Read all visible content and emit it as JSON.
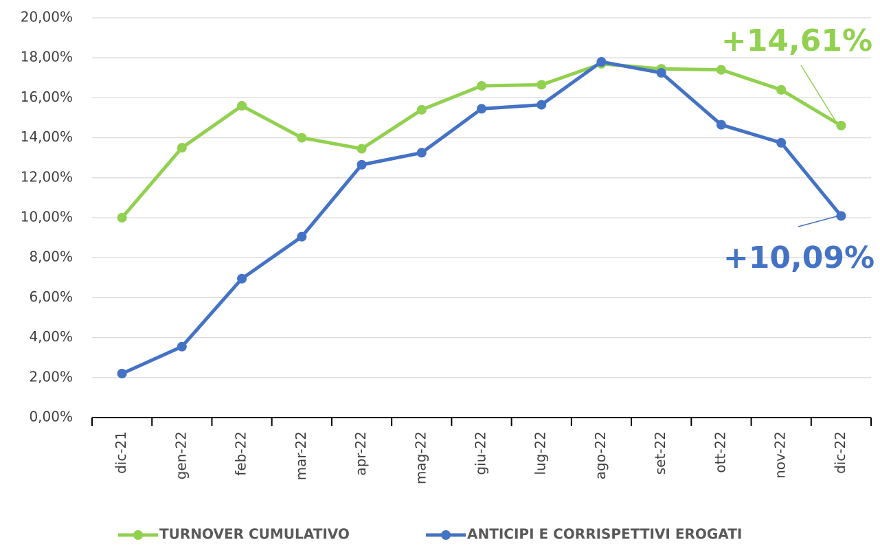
{
  "chart_data": {
    "type": "line",
    "categories": [
      "dic-21",
      "gen-22",
      "feb-22",
      "mar-22",
      "apr-22",
      "mag-22",
      "giu-22",
      "lug-22",
      "ago-22",
      "set-22",
      "ott-22",
      "nov-22",
      "dic-22"
    ],
    "series": [
      {
        "name": "TURNOVER CUMULATIVO",
        "color": "#92d050",
        "values": [
          10.0,
          13.5,
          15.6,
          14.0,
          13.45,
          15.4,
          16.6,
          16.65,
          17.7,
          17.45,
          17.4,
          16.4,
          14.61
        ]
      },
      {
        "name": "ANTICIPI E CORRISPETTIVI EROGATI",
        "color": "#4472c4",
        "values": [
          2.2,
          3.55,
          6.95,
          9.05,
          12.65,
          13.25,
          15.45,
          15.65,
          17.8,
          17.25,
          14.65,
          13.75,
          10.09
        ]
      }
    ],
    "annotations": [
      {
        "text": "+14,61%",
        "color": "#92d050"
      },
      {
        "text": "+10,09%",
        "color": "#4472c4"
      }
    ],
    "ylim": [
      0,
      20
    ],
    "yticks": [
      {
        "value": 0,
        "label": "0,00%"
      },
      {
        "value": 2,
        "label": "2,00%"
      },
      {
        "value": 4,
        "label": "4,00%"
      },
      {
        "value": 6,
        "label": "6,00%"
      },
      {
        "value": 8,
        "label": "8,00%"
      },
      {
        "value": 10,
        "label": "10,00%"
      },
      {
        "value": 12,
        "label": "12,00%"
      },
      {
        "value": 14,
        "label": "14,00%"
      },
      {
        "value": 16,
        "label": "16,00%"
      },
      {
        "value": 18,
        "label": "18,00%"
      },
      {
        "value": 20,
        "label": "20,00%"
      }
    ],
    "grid": true,
    "legend": "bottom"
  }
}
